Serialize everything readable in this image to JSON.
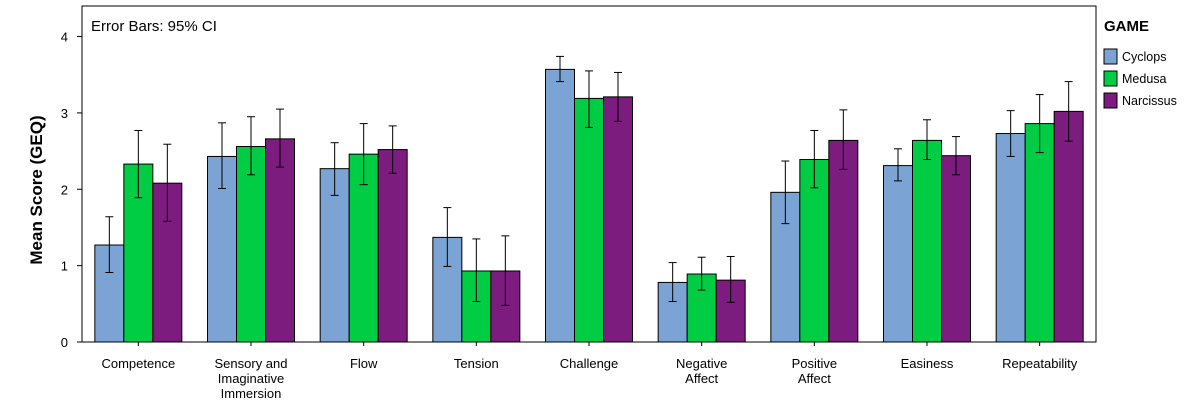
{
  "chart_data": {
    "type": "bar",
    "annotation": "Error Bars: 95% CI",
    "ylabel": "Mean Score (GEQ)",
    "xlabel": "",
    "ylim": [
      0,
      4.4
    ],
    "yticks": [
      "0",
      "1",
      "2",
      "3",
      "4"
    ],
    "grid": false,
    "legend_position": "right",
    "legend_title": "GAME",
    "categories": [
      "Competence",
      "Sensory and Imaginative Immersion",
      "Flow",
      "Tension",
      "Challenge",
      "Negative Affect",
      "Positive Affect",
      "Easiness",
      "Repeatability"
    ],
    "category_label_lines": [
      [
        "Competence"
      ],
      [
        "Sensory and",
        "Imaginative",
        "Immersion"
      ],
      [
        "Flow"
      ],
      [
        "Tension"
      ],
      [
        "Challenge"
      ],
      [
        "Negative",
        "Affect"
      ],
      [
        "Positive",
        "Affect"
      ],
      [
        "Easiness"
      ],
      [
        "Repeatability"
      ]
    ],
    "series": [
      {
        "name": "Cyclops",
        "color": "#7ba4d4",
        "values": [
          1.27,
          2.43,
          2.27,
          1.37,
          3.57,
          0.78,
          1.96,
          2.31,
          2.73
        ],
        "ci_low": [
          0.91,
          2.01,
          1.92,
          0.99,
          3.41,
          0.53,
          1.55,
          2.11,
          2.43
        ],
        "ci_high": [
          1.64,
          2.87,
          2.61,
          1.76,
          3.74,
          1.04,
          2.37,
          2.53,
          3.03
        ]
      },
      {
        "name": "Medusa",
        "color": "#00cc44",
        "values": [
          2.33,
          2.56,
          2.46,
          0.93,
          3.19,
          0.89,
          2.39,
          2.64,
          2.86
        ],
        "ci_low": [
          1.89,
          2.19,
          2.06,
          0.53,
          2.81,
          0.68,
          2.02,
          2.39,
          2.48
        ],
        "ci_high": [
          2.77,
          2.95,
          2.86,
          1.35,
          3.55,
          1.11,
          2.77,
          2.91,
          3.24
        ]
      },
      {
        "name": "Narcissus",
        "color": "#7b1c7e",
        "values": [
          2.08,
          2.66,
          2.52,
          0.93,
          3.21,
          0.81,
          2.64,
          2.44,
          3.02
        ],
        "ci_low": [
          1.58,
          2.29,
          2.21,
          0.48,
          2.89,
          0.52,
          2.26,
          2.19,
          2.63
        ],
        "ci_high": [
          2.59,
          3.05,
          2.83,
          1.39,
          3.53,
          1.12,
          3.04,
          2.69,
          3.41
        ]
      }
    ]
  }
}
